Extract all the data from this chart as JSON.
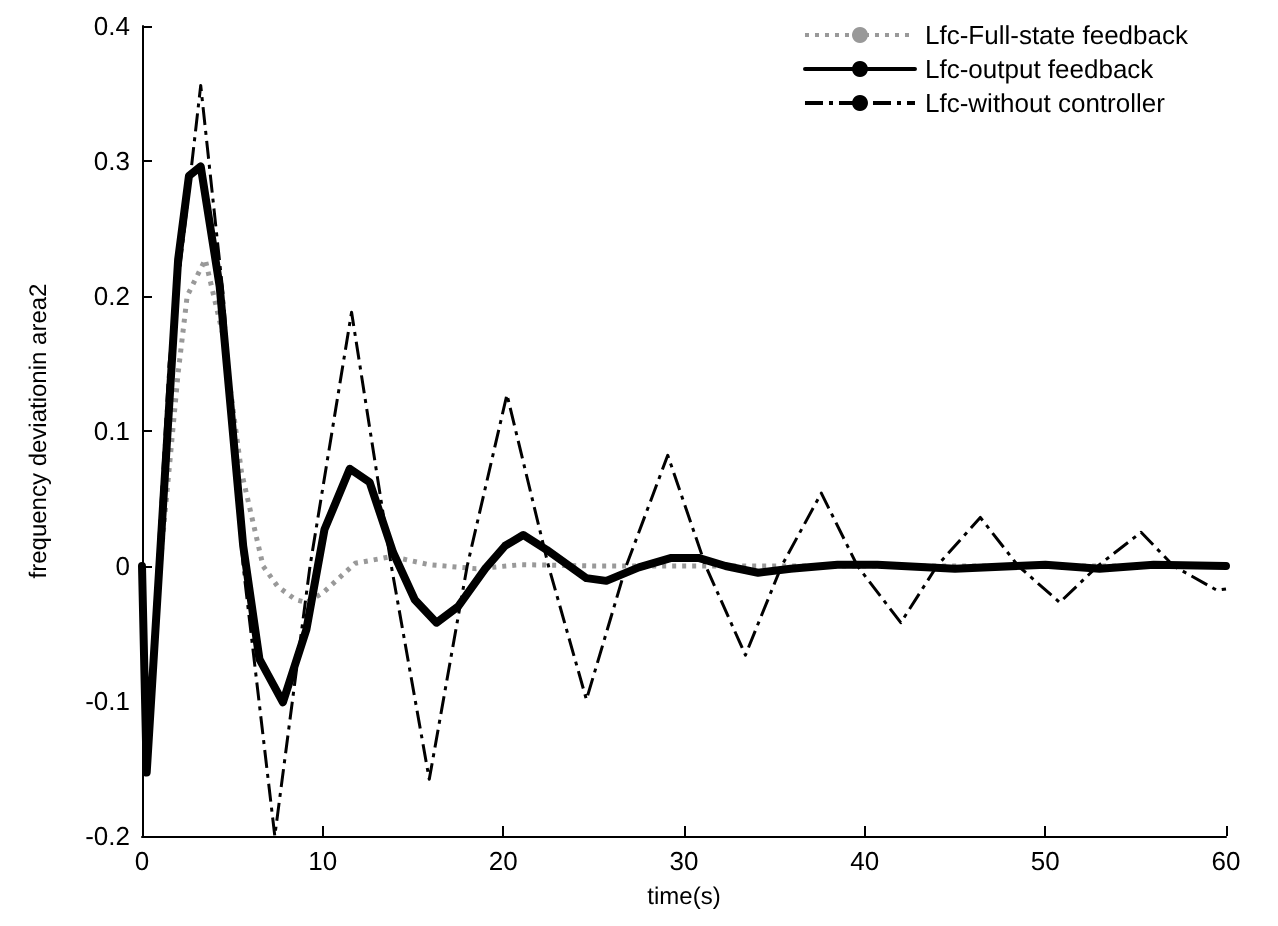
{
  "chart_data": {
    "type": "line",
    "xlabel": "time(s)",
    "ylabel": "frequency deviationin area2",
    "xlim": [
      0,
      60
    ],
    "xticks": [
      0,
      10,
      20,
      30,
      40,
      50,
      60
    ],
    "ylim": [
      -0.2,
      0.4
    ],
    "yticks": [
      -0.2,
      -0.1,
      0,
      0.1,
      0.2,
      0.3,
      0.4
    ],
    "grid": false,
    "legend": "top right",
    "marker": "none",
    "series": [
      {
        "name": "Lfc-Full-state feedback",
        "color": "#999999",
        "line_style": "dotted",
        "x": [
          0,
          0.3,
          1,
          2,
          2.5,
          3.5,
          4.5,
          5.5,
          6.7,
          7.5,
          8.5,
          9.1,
          10,
          11.8,
          13.8,
          15.9,
          18.5,
          21,
          25,
          30,
          40,
          50,
          60
        ],
        "values": [
          0,
          -0.15,
          0.0,
          0.143,
          0.2,
          0.227,
          0.17,
          0.07,
          0.0,
          -0.015,
          -0.025,
          -0.027,
          -0.02,
          0.002,
          0.007,
          0.001,
          -0.002,
          0.001,
          0,
          0,
          0,
          0,
          0
        ]
      },
      {
        "name": "Lfc-output feedback",
        "color": "#000000",
        "line_style": "solid",
        "x": [
          0,
          0.26,
          2.0,
          2.6,
          3.25,
          4.3,
          5.6,
          6.5,
          7.8,
          9.1,
          10.1,
          11.5,
          12.6,
          13.9,
          15.1,
          16.3,
          17.5,
          19.0,
          20.1,
          21.1,
          22.4,
          24.6,
          25.7,
          27.5,
          29.3,
          30.8,
          32.3,
          34.1,
          35.9,
          38.5,
          40.7,
          45,
          50,
          53,
          56,
          60
        ],
        "values": [
          0,
          -0.153,
          0.227,
          0.289,
          0.296,
          0.207,
          0.015,
          -0.069,
          -0.101,
          -0.047,
          0.027,
          0.072,
          0.062,
          0.01,
          -0.025,
          -0.042,
          -0.03,
          -0.002,
          0.015,
          0.023,
          0.012,
          -0.009,
          -0.011,
          -0.001,
          0.006,
          0.006,
          0,
          -0.005,
          -0.002,
          0.001,
          0.001,
          -0.002,
          0.001,
          -0.002,
          0.001,
          0
        ]
      },
      {
        "name": "Lfc-without controller",
        "color": "#000000",
        "line_style": "dashdot",
        "x": [
          0,
          0.2,
          1.5,
          3.25,
          4.5,
          5.6,
          7.35,
          9.3,
          11.6,
          13.8,
          15.9,
          18.0,
          20.2,
          22.5,
          24.6,
          26.8,
          29.1,
          31.2,
          33.4,
          35.4,
          37.6,
          39.6,
          42,
          44,
          46.4,
          48.5,
          50.8,
          52.9,
          55.3,
          57.1,
          59.5,
          60
        ],
        "values": [
          0,
          -0.153,
          0.15,
          0.356,
          0.2,
          0,
          -0.2,
          0,
          0.188,
          0,
          -0.158,
          0,
          0.127,
          0,
          -0.099,
          0,
          0.082,
          0,
          -0.066,
          0,
          0.054,
          0,
          -0.042,
          0,
          0.036,
          0,
          -0.027,
          0,
          0.025,
          0,
          -0.018,
          -0.017
        ]
      }
    ]
  }
}
